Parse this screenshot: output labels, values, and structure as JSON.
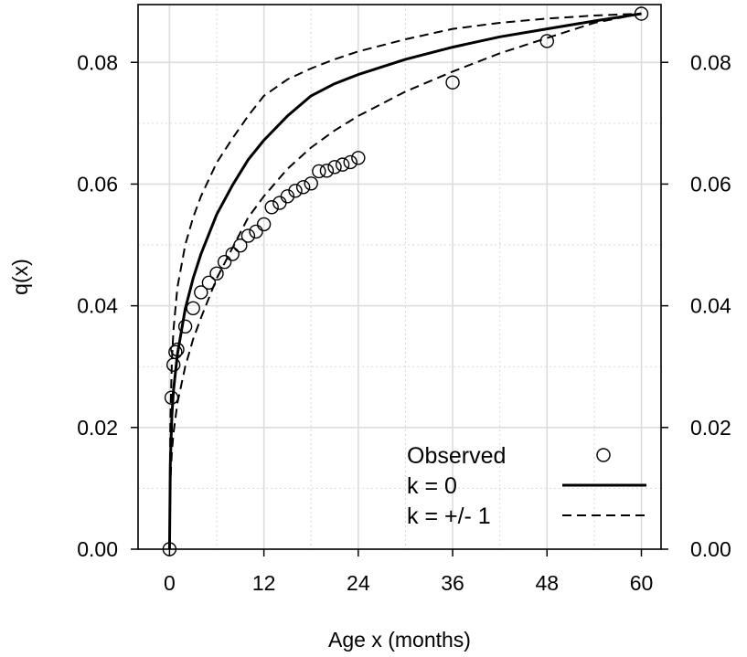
{
  "chart_data": {
    "type": "line",
    "xlabel": "Age x (months)",
    "ylabel": "q(x)",
    "xlim": [
      -4,
      62.5
    ],
    "ylim": [
      0,
      0.0895
    ],
    "x_ticks": [
      0,
      12,
      24,
      36,
      48,
      60
    ],
    "x_tick_labels": [
      "0",
      "12",
      "24",
      "36",
      "48",
      "60"
    ],
    "y_ticks": [
      0,
      0.02,
      0.04,
      0.06,
      0.08
    ],
    "y_tick_labels": [
      "0.00",
      "0.02",
      "0.04",
      "0.06",
      "0.08"
    ],
    "right_axis_tick_labels": [
      "0.00",
      "0.02",
      "0.04",
      "0.06",
      "0.08"
    ],
    "grid": true,
    "legend_position": "bottom-right",
    "series": [
      {
        "name": "Observed",
        "style": "points",
        "x": [
          0,
          0.25,
          0.5,
          0.75,
          1,
          2,
          3,
          4,
          5,
          6,
          7,
          8,
          9,
          10,
          11,
          12,
          13,
          14,
          15,
          16,
          17,
          18,
          19,
          20,
          21,
          22,
          23,
          24,
          36,
          48,
          60
        ],
        "y": [
          0,
          0.0249,
          0.0303,
          0.0324,
          0.0328,
          0.0366,
          0.0396,
          0.0422,
          0.0438,
          0.0453,
          0.0472,
          0.0485,
          0.0499,
          0.0515,
          0.0522,
          0.0534,
          0.0562,
          0.0569,
          0.058,
          0.0589,
          0.0595,
          0.0601,
          0.0621,
          0.0622,
          0.0628,
          0.0632,
          0.0636,
          0.0643,
          0.0767,
          0.0835,
          0.088
        ]
      },
      {
        "name": "k = 0",
        "style": "solid",
        "x": [
          0,
          0.1,
          0.3,
          0.5,
          1,
          2,
          3,
          4,
          6,
          8,
          10,
          12,
          15,
          18,
          21,
          24,
          30,
          36,
          42,
          48,
          54,
          60
        ],
        "y": [
          0,
          0.014,
          0.022,
          0.026,
          0.032,
          0.0395,
          0.0445,
          0.0485,
          0.055,
          0.0598,
          0.064,
          0.0672,
          0.0712,
          0.0745,
          0.0765,
          0.078,
          0.0805,
          0.0825,
          0.0842,
          0.0855,
          0.0868,
          0.088
        ]
      },
      {
        "name": "k = +/- 1",
        "style": "dashed",
        "x": [
          0,
          0.1,
          0.3,
          0.5,
          1,
          2,
          3,
          4,
          6,
          8,
          10,
          12,
          15,
          18,
          21,
          24,
          30,
          36,
          42,
          48,
          54,
          60
        ],
        "y": [
          0,
          0.021,
          0.031,
          0.036,
          0.043,
          0.05,
          0.0545,
          0.058,
          0.0635,
          0.0675,
          0.0712,
          0.0745,
          0.0772,
          0.079,
          0.0805,
          0.0818,
          0.0838,
          0.0855,
          0.0865,
          0.0872,
          0.0877,
          0.088
        ]
      },
      {
        "name": "k = +/- 1",
        "style": "dashed",
        "x": [
          0,
          0.1,
          0.3,
          0.5,
          1,
          2,
          3,
          4,
          6,
          8,
          10,
          12,
          15,
          18,
          21,
          24,
          30,
          36,
          42,
          48,
          54,
          60
        ],
        "y": [
          0,
          0.011,
          0.016,
          0.019,
          0.024,
          0.03,
          0.0345,
          0.038,
          0.0445,
          0.0495,
          0.0545,
          0.058,
          0.0625,
          0.066,
          0.0688,
          0.0712,
          0.0752,
          0.0785,
          0.0815,
          0.084,
          0.0865,
          0.088
        ]
      }
    ],
    "legend": [
      {
        "label": "Observed",
        "style": "points"
      },
      {
        "label": "k = 0",
        "style": "solid"
      },
      {
        "label": "k = +/- 1",
        "style": "dashed"
      }
    ]
  }
}
